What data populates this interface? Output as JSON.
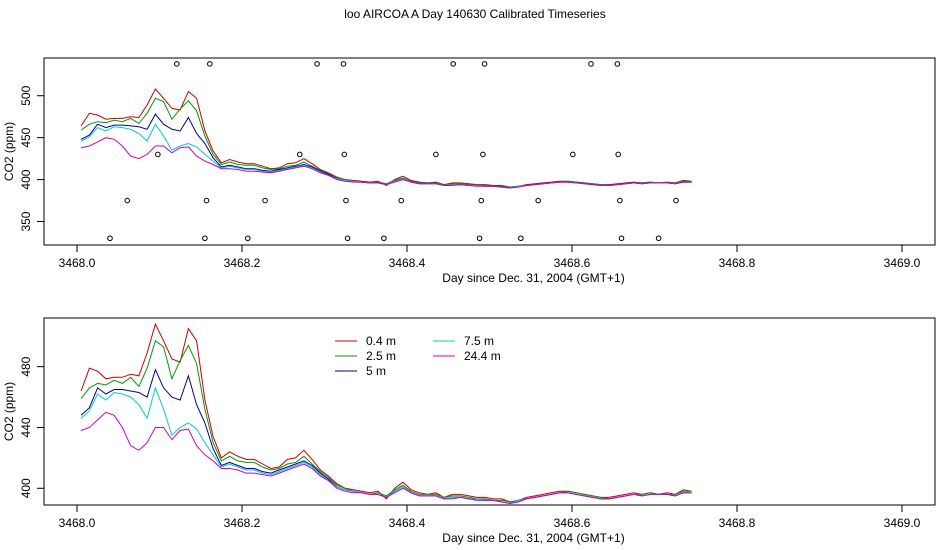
{
  "figure": {
    "title": "loo AIRCOA A  Day 140630  Calibrated Timeseries"
  },
  "chart_data": [
    {
      "type": "line",
      "xlabel": "Day since Dec. 31, 2004 (GMT+1)",
      "ylabel": "CO2 (ppm)",
      "xlim": [
        3467.96,
        3469.04
      ],
      "ylim": [
        322,
        545
      ],
      "xticks": [
        "3468.0",
        "3468.2",
        "3468.4",
        "3468.6",
        "3468.8",
        "3469.0"
      ],
      "yticks": [
        "350",
        "400",
        "450",
        "500"
      ],
      "x": [
        3468.005,
        3468.015,
        3468.025,
        3468.035,
        3468.045,
        3468.055,
        3468.065,
        3468.075,
        3468.085,
        3468.095,
        3468.105,
        3468.115,
        3468.125,
        3468.135,
        3468.145,
        3468.155,
        3468.165,
        3468.175,
        3468.185,
        3468.195,
        3468.205,
        3468.215,
        3468.225,
        3468.235,
        3468.245,
        3468.255,
        3468.265,
        3468.275,
        3468.285,
        3468.295,
        3468.305,
        3468.315,
        3468.325,
        3468.335,
        3468.345,
        3468.355,
        3468.365,
        3468.375,
        3468.385,
        3468.395,
        3468.405,
        3468.415,
        3468.425,
        3468.435,
        3468.445,
        3468.455,
        3468.465,
        3468.475,
        3468.485,
        3468.495,
        3468.505,
        3468.515,
        3468.525,
        3468.535,
        3468.545,
        3468.555,
        3468.565,
        3468.575,
        3468.585,
        3468.595,
        3468.605,
        3468.615,
        3468.625,
        3468.635,
        3468.645,
        3468.655,
        3468.665,
        3468.675,
        3468.685,
        3468.695,
        3468.705,
        3468.715,
        3468.725,
        3468.735,
        3468.745
      ],
      "series": [
        {
          "name": "0.4 m",
          "color": "#cc0000",
          "values": [
            464,
            479,
            477,
            472,
            473,
            473,
            475,
            474,
            489,
            508,
            497,
            485,
            483,
            505,
            497,
            458,
            434,
            420,
            424,
            421,
            419,
            419,
            416,
            413,
            414,
            419,
            420,
            425,
            419,
            412,
            408,
            403,
            400,
            399,
            398,
            397,
            398,
            393,
            400,
            404,
            399,
            397,
            396,
            397,
            394,
            396,
            396,
            395,
            394,
            394,
            393,
            393,
            391,
            392,
            394,
            395,
            396,
            397,
            398,
            398,
            397,
            396,
            395,
            394,
            394,
            395,
            396,
            397,
            396,
            397,
            396,
            397,
            396,
            399,
            398
          ]
        },
        {
          "name": "2.5 m",
          "color": "#009900",
          "values": [
            459,
            466,
            469,
            468,
            471,
            469,
            473,
            467,
            479,
            497,
            493,
            472,
            484,
            494,
            482,
            452,
            430,
            418,
            421,
            418,
            417,
            417,
            414,
            412,
            413,
            416,
            417,
            421,
            416,
            411,
            407,
            402,
            400,
            398,
            397,
            396,
            397,
            395,
            399,
            402,
            398,
            396,
            396,
            396,
            394,
            395,
            395,
            394,
            393,
            393,
            392,
            392,
            391,
            392,
            393,
            394,
            395,
            396,
            397,
            398,
            397,
            396,
            395,
            394,
            393,
            394,
            395,
            396,
            396,
            397,
            396,
            396,
            396,
            398,
            398
          ]
        },
        {
          "name": "5 m",
          "color": "#000099",
          "values": [
            448,
            453,
            466,
            462,
            465,
            465,
            464,
            463,
            460,
            478,
            466,
            460,
            458,
            474,
            455,
            443,
            426,
            415,
            417,
            415,
            413,
            413,
            411,
            410,
            412,
            414,
            416,
            418,
            415,
            410,
            406,
            401,
            399,
            398,
            397,
            396,
            396,
            394,
            398,
            401,
            397,
            395,
            395,
            395,
            393,
            394,
            394,
            393,
            393,
            392,
            392,
            391,
            390,
            392,
            393,
            394,
            395,
            396,
            397,
            397,
            396,
            395,
            394,
            393,
            393,
            394,
            395,
            396,
            395,
            396,
            396,
            396,
            395,
            397,
            397
          ]
        },
        {
          "name": "7.5 m",
          "color": "#00cccc",
          "values": [
            446,
            451,
            462,
            458,
            463,
            462,
            460,
            455,
            446,
            466,
            452,
            435,
            440,
            443,
            439,
            430,
            422,
            414,
            416,
            414,
            412,
            412,
            410,
            409,
            411,
            413,
            415,
            417,
            414,
            409,
            405,
            401,
            399,
            398,
            397,
            396,
            396,
            394,
            398,
            401,
            397,
            395,
            395,
            395,
            393,
            394,
            394,
            393,
            393,
            392,
            392,
            391,
            390,
            392,
            393,
            394,
            395,
            396,
            397,
            397,
            396,
            395,
            394,
            393,
            393,
            394,
            395,
            396,
            395,
            396,
            396,
            396,
            395,
            397,
            397
          ]
        },
        {
          "name": "24.4 m",
          "color": "#cc00cc",
          "values": [
            438,
            440,
            445,
            450,
            448,
            440,
            428,
            425,
            430,
            440,
            440,
            432,
            438,
            439,
            428,
            422,
            418,
            413,
            413,
            412,
            410,
            410,
            409,
            408,
            410,
            412,
            414,
            416,
            413,
            408,
            405,
            400,
            398,
            397,
            397,
            396,
            396,
            394,
            397,
            400,
            397,
            395,
            395,
            395,
            393,
            393,
            394,
            393,
            392,
            392,
            392,
            391,
            390,
            391,
            393,
            394,
            395,
            396,
            397,
            397,
            396,
            395,
            394,
            393,
            393,
            394,
            395,
            396,
            395,
            396,
            396,
            396,
            395,
            397,
            397
          ]
        }
      ],
      "markers": [
        {
          "x": 3468.04,
          "y": 330
        },
        {
          "x": 3468.061,
          "y": 375
        },
        {
          "x": 3468.098,
          "y": 430
        },
        {
          "x": 3468.121,
          "y": 538
        },
        {
          "x": 3468.155,
          "y": 330
        },
        {
          "x": 3468.157,
          "y": 375
        },
        {
          "x": 3468.161,
          "y": 538
        },
        {
          "x": 3468.207,
          "y": 330
        },
        {
          "x": 3468.228,
          "y": 375
        },
        {
          "x": 3468.27,
          "y": 430
        },
        {
          "x": 3468.291,
          "y": 538
        },
        {
          "x": 3468.323,
          "y": 538
        },
        {
          "x": 3468.324,
          "y": 430
        },
        {
          "x": 3468.326,
          "y": 375
        },
        {
          "x": 3468.328,
          "y": 330
        },
        {
          "x": 3468.372,
          "y": 330
        },
        {
          "x": 3468.393,
          "y": 375
        },
        {
          "x": 3468.435,
          "y": 430
        },
        {
          "x": 3468.456,
          "y": 538
        },
        {
          "x": 3468.488,
          "y": 330
        },
        {
          "x": 3468.49,
          "y": 375
        },
        {
          "x": 3468.492,
          "y": 430
        },
        {
          "x": 3468.494,
          "y": 538
        },
        {
          "x": 3468.538,
          "y": 330
        },
        {
          "x": 3468.559,
          "y": 375
        },
        {
          "x": 3468.601,
          "y": 430
        },
        {
          "x": 3468.623,
          "y": 538
        },
        {
          "x": 3468.655,
          "y": 538
        },
        {
          "x": 3468.656,
          "y": 430
        },
        {
          "x": 3468.658,
          "y": 375
        },
        {
          "x": 3468.66,
          "y": 330
        },
        {
          "x": 3468.705,
          "y": 330
        },
        {
          "x": 3468.726,
          "y": 375
        }
      ],
      "legend": "none"
    },
    {
      "type": "line",
      "xlabel": "Day since Dec. 31, 2004 (GMT+1)",
      "ylabel": "CO2 (ppm)",
      "xlim": [
        3467.96,
        3469.04
      ],
      "ylim": [
        389,
        512
      ],
      "xticks": [
        "3468.0",
        "3468.2",
        "3468.4",
        "3468.6",
        "3468.8",
        "3469.0"
      ],
      "yticks": [
        "400",
        "440",
        "480"
      ],
      "series_ref": "same as panel 1",
      "legend": "top-left",
      "legend_order": [
        "0.4 m",
        "2.5 m",
        "5 m",
        "7.5 m",
        "24.4 m"
      ]
    }
  ]
}
